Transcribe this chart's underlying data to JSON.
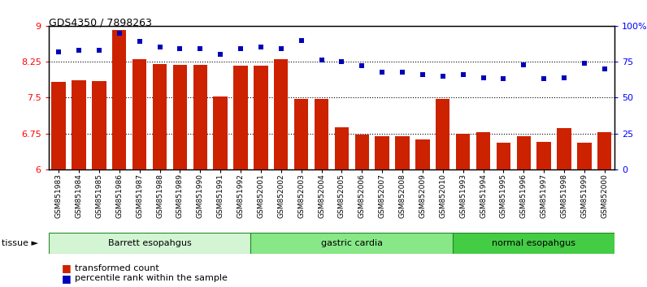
{
  "title": "GDS4350 / 7898263",
  "samples": [
    "GSM851983",
    "GSM851984",
    "GSM851985",
    "GSM851986",
    "GSM851987",
    "GSM851988",
    "GSM851989",
    "GSM851990",
    "GSM851991",
    "GSM851992",
    "GSM852001",
    "GSM852002",
    "GSM852003",
    "GSM852004",
    "GSM852005",
    "GSM852006",
    "GSM852007",
    "GSM852008",
    "GSM852009",
    "GSM852010",
    "GSM851993",
    "GSM851994",
    "GSM851995",
    "GSM851996",
    "GSM851997",
    "GSM851998",
    "GSM851999",
    "GSM852000"
  ],
  "bar_values": [
    7.82,
    7.87,
    7.84,
    8.91,
    8.3,
    8.2,
    8.19,
    8.18,
    7.52,
    8.17,
    8.16,
    8.3,
    7.48,
    7.48,
    6.88,
    6.72,
    6.69,
    6.69,
    6.62,
    7.47,
    6.75,
    6.77,
    6.55,
    6.7,
    6.57,
    6.87,
    6.55,
    6.78
  ],
  "percentile_values": [
    82,
    83,
    83,
    95,
    89,
    85,
    84,
    84,
    80,
    84,
    85,
    84,
    90,
    76,
    75,
    72,
    68,
    68,
    66,
    65,
    66,
    64,
    63,
    73,
    63,
    64,
    74,
    70
  ],
  "groups": [
    {
      "label": "Barrett esopahgus",
      "start": 0,
      "end": 10,
      "color": "#d4f5d4"
    },
    {
      "label": "gastric cardia",
      "start": 10,
      "end": 20,
      "color": "#88e888"
    },
    {
      "label": "normal esopahgus",
      "start": 20,
      "end": 28,
      "color": "#44cc44"
    }
  ],
  "bar_color": "#cc2200",
  "dot_color": "#0000bb",
  "ylim_left": [
    6.0,
    9.0
  ],
  "ylim_right": [
    0,
    100
  ],
  "yticks_left": [
    6.0,
    6.75,
    7.5,
    8.25,
    9.0
  ],
  "ytick_labels_left": [
    "6",
    "6.75",
    "7.5",
    "8.25",
    "9"
  ],
  "yticks_right": [
    0,
    25,
    50,
    75,
    100
  ],
  "ytick_labels_right": [
    "0",
    "25",
    "50",
    "75",
    "100%"
  ],
  "hlines": [
    6.75,
    7.5,
    8.25
  ],
  "tissue_label": "tissue ►"
}
